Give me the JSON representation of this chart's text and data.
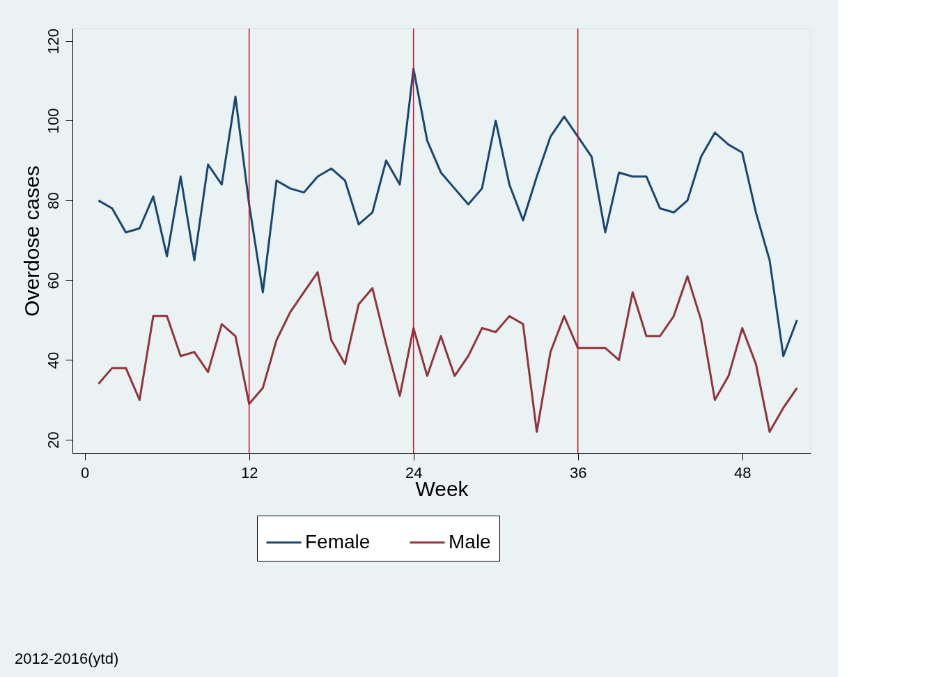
{
  "chart_data": {
    "type": "line",
    "xlabel": "Week",
    "ylabel": "Overdose cases",
    "x": [
      1,
      2,
      3,
      4,
      5,
      6,
      7,
      8,
      9,
      10,
      11,
      12,
      13,
      14,
      15,
      16,
      17,
      18,
      19,
      20,
      21,
      22,
      23,
      24,
      25,
      26,
      27,
      28,
      29,
      30,
      31,
      32,
      33,
      34,
      35,
      36,
      37,
      38,
      39,
      40,
      41,
      42,
      43,
      44,
      45,
      46,
      47,
      48,
      49,
      50,
      51,
      52
    ],
    "series": [
      {
        "name": "Female",
        "color": "#1a476f",
        "values": [
          80,
          78,
          72,
          73,
          81,
          66,
          86,
          65,
          89,
          84,
          106,
          79,
          57,
          85,
          83,
          82,
          86,
          88,
          85,
          74,
          77,
          90,
          84,
          113,
          95,
          87,
          83,
          79,
          83,
          100,
          84,
          75,
          86,
          96,
          101,
          96,
          91,
          72,
          87,
          86,
          86,
          78,
          77,
          80,
          91,
          97,
          94,
          92,
          77,
          65,
          41,
          50
        ]
      },
      {
        "name": "Male",
        "color": "#90353b",
        "values": [
          34,
          38,
          38,
          30,
          51,
          51,
          41,
          42,
          37,
          49,
          46,
          29,
          33,
          45,
          52,
          57,
          62,
          45,
          39,
          54,
          58,
          44,
          31,
          48,
          36,
          46,
          36,
          41,
          48,
          47,
          51,
          49,
          22,
          42,
          51,
          43,
          43,
          43,
          40,
          57,
          46,
          46,
          51,
          61,
          50,
          30,
          36,
          48,
          39,
          22,
          28,
          33
        ]
      }
    ],
    "xlim": [
      -0.9,
      53
    ],
    "xticks": [
      0,
      12,
      24,
      36,
      48
    ],
    "ylim": [
      16.7,
      123.1
    ],
    "yticks": [
      20,
      40,
      60,
      80,
      100,
      120
    ],
    "ref_lines": [
      {
        "axis": "x",
        "value": 12,
        "color": "#c8102e"
      },
      {
        "axis": "x",
        "value": 24,
        "color": "#c8102e"
      },
      {
        "axis": "x",
        "value": 36,
        "color": "#c8102e"
      }
    ],
    "grid": "y",
    "legend": "bottom",
    "marker": "none",
    "line_style": "solid",
    "annotations": [
      "2012-2016(ytd)"
    ]
  }
}
